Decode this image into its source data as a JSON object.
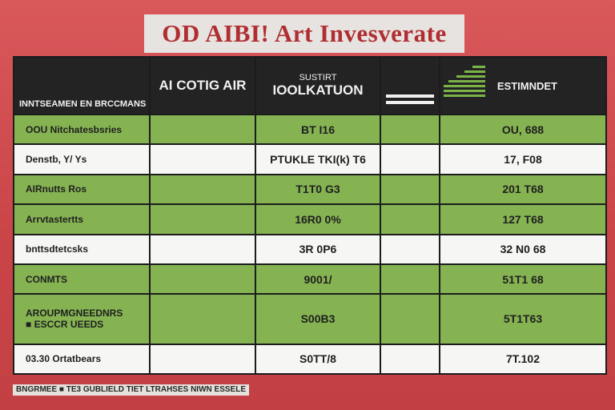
{
  "title": "OD AIBI! Art Invesverate",
  "header": {
    "col0": "INNTSEAMEN EN BRCCMANS",
    "col1": "AI COTIG AIR",
    "col2_sub": "SUSTIRT",
    "col2_main": "IOOLKATUON",
    "col4": "ESTIMNDET"
  },
  "rows": [
    {
      "label": "OOU Nitchatesbsries",
      "v2": "BT I16",
      "v4": "OU, 688",
      "style": "green"
    },
    {
      "label": "Denstb, Y/ Ys",
      "v2": "PTUKLE TKI(k) T6",
      "v4": "17, F08",
      "style": "white"
    },
    {
      "label": "AIRnutts Ros",
      "v2": "T1T0 G3",
      "v4": "201 T68",
      "style": "green"
    },
    {
      "label": "Arrvtastertts",
      "v2": "16R0 0%",
      "v4": "127 T68",
      "style": "green"
    },
    {
      "label": "bnttsdtetcsks",
      "v2": "3R 0P6",
      "v4": "32 N0 68",
      "style": "white"
    },
    {
      "label": "CONMTS",
      "v2": "9001/",
      "v4": "51T1 68",
      "style": "green"
    },
    {
      "label": "AROUPMGNEEDNRS\n■ ESCCR UEEDS",
      "v2": "S00B3",
      "v4": "5T1T63",
      "style": "green"
    },
    {
      "label": "03.30 Ortatbears",
      "v2": "S0TT/8",
      "v4": "7T.102",
      "style": "white"
    }
  ],
  "footnote": "BNGRMEE ■ TE3 GUBLIELD TIET LTRAHSES NIWN ESSELE"
}
